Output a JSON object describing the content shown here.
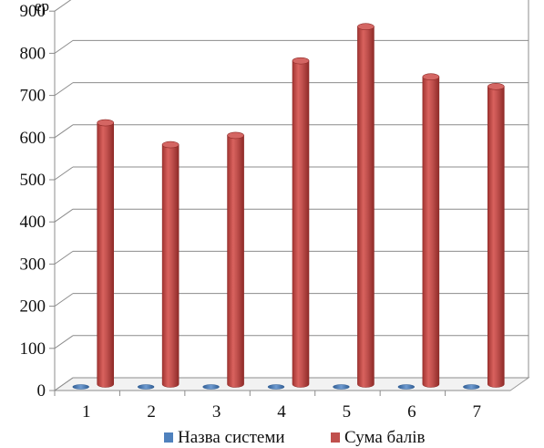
{
  "chart_data": {
    "type": "bar",
    "style": "3d-cylinder",
    "categories": [
      "1",
      "2",
      "3",
      "4",
      "5",
      "6",
      "7"
    ],
    "series": [
      {
        "name": "Назва системи",
        "color": "#4f81bd",
        "values": [
          0,
          0,
          0,
          0,
          0,
          0,
          0
        ]
      },
      {
        "name": "Сума балів",
        "color": "#c0504d",
        "values": [
          620,
          568,
          590,
          767,
          848,
          729,
          706
        ]
      }
    ],
    "ylabel": "ер",
    "ylim": [
      0,
      900
    ],
    "yticks": [
      0,
      100,
      200,
      300,
      400,
      500,
      600,
      700,
      800,
      900
    ],
    "grid": true,
    "legend": "bottom"
  }
}
